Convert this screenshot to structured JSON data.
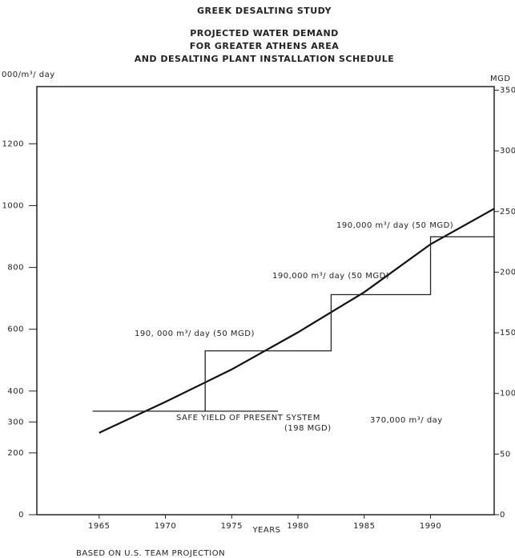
{
  "header": "GREEK DESALTING STUDY",
  "footer": "BASED ON U.S. TEAM PROJECTION",
  "chart_data": {
    "type": "line",
    "title": [
      "PROJECTED WATER DEMAND",
      "FOR GREATER ATHENS AREA",
      "AND DESALTING PLANT INSTALLATION SCHEDULE"
    ],
    "ylabel": "000/m³/ day",
    "y2label": "MGD",
    "xlabel": "YEARS",
    "annotations": [
      "190, 000 m³/ day  (50 MGD)",
      "190,000 m³/ day  (50 MGD)",
      "190,000 m³/ day  (50 MGD)",
      "SAFE YIELD OF PRESENT SYSTEM",
      "(198 MGD)",
      "370,000 m³/ day"
    ],
    "xlim": [
      1960.3,
      1994.8
    ],
    "xticks": [
      1965,
      1970,
      1975,
      1980,
      1985,
      1990
    ],
    "ylim": [
      0,
      1385
    ],
    "yticks": [
      0,
      200,
      300,
      400,
      600,
      800,
      1000,
      1200
    ],
    "y2lim": [
      0,
      353
    ],
    "y2ticks": [
      0,
      50,
      100,
      150,
      200,
      250,
      300,
      350
    ],
    "series": [
      {
        "color": "#111111",
        "x": [
          1965,
          1970,
          1975,
          1980,
          1985,
          1990,
          1994.8
        ],
        "values": [
          265,
          365,
          470,
          590,
          720,
          875,
          990
        ]
      },
      {
        "color": "#222222",
        "x": [
          1973,
          1973,
          1982.5,
          1982.5,
          1990,
          1990,
          1994.8
        ],
        "values": [
          335,
          530,
          530,
          712,
          712,
          899,
          899
        ]
      },
      {
        "color": "#222222",
        "x": [
          1964.5,
          1978.5
        ],
        "values": [
          335,
          335
        ]
      }
    ]
  }
}
